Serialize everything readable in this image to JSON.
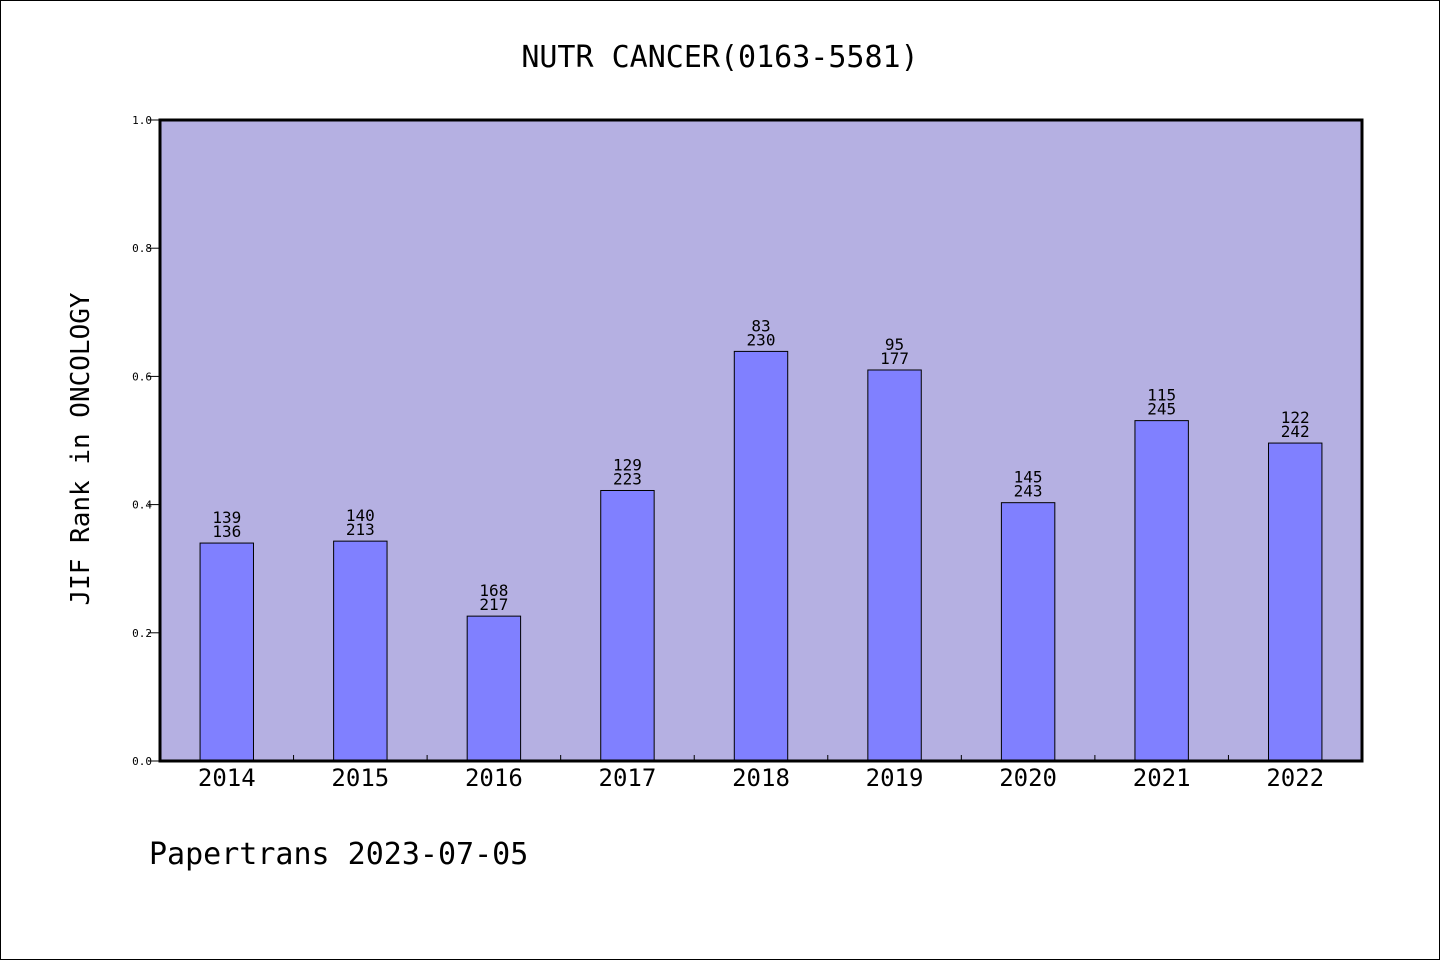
{
  "chart_data": {
    "type": "bar",
    "title": "NUTR CANCER(0163-5581)",
    "xlabel": "",
    "ylabel": "JIF Rank in ONCOLOGY",
    "ylim": [
      0.0,
      1.0
    ],
    "yticks": [
      0.0,
      0.2,
      0.4,
      0.6,
      0.8,
      1.0
    ],
    "ytick_labels": [
      "0.0",
      "0.2",
      "0.4",
      "0.6",
      "0.8",
      "1.0"
    ],
    "categories": [
      "2014",
      "2015",
      "2016",
      "2017",
      "2018",
      "2019",
      "2020",
      "2021",
      "2022"
    ],
    "values": [
      0.34,
      0.343,
      0.226,
      0.422,
      0.639,
      0.61,
      0.403,
      0.531,
      0.496
    ],
    "labels_top": [
      "139",
      "140",
      "168",
      "129",
      "83",
      "95",
      "145",
      "115",
      "122"
    ],
    "labels_bottom": [
      "136",
      "213",
      "217",
      "223",
      "230",
      "177",
      "243",
      "245",
      "242"
    ],
    "grid": false,
    "legend": "none",
    "colors": {
      "plot_background": "#b5b0e2",
      "bar_fill": "#8080ff",
      "bar_edge": "#000000"
    }
  },
  "footer": "Papertrans 2023-07-05"
}
